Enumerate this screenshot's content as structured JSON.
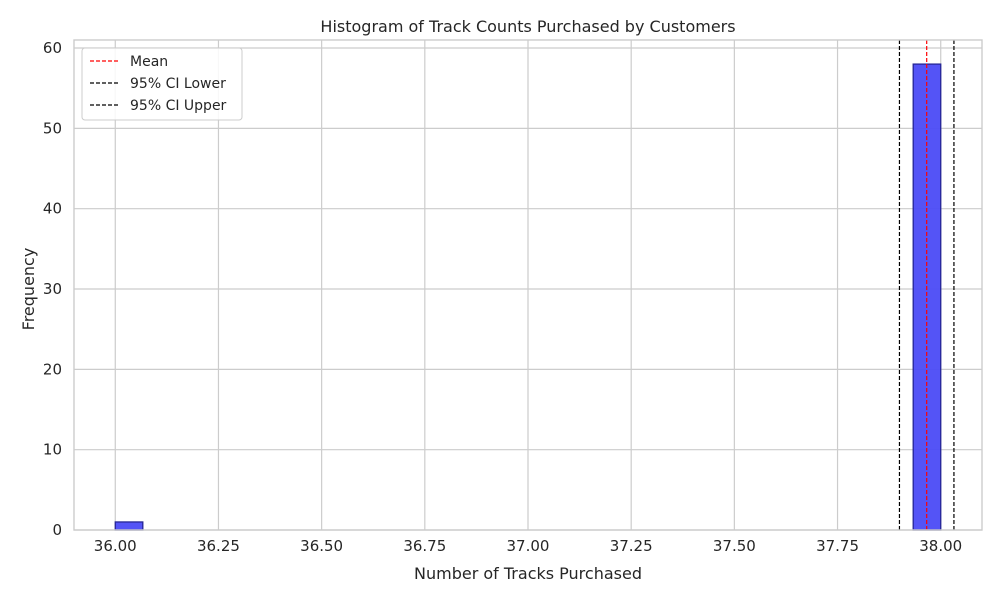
{
  "chart_data": {
    "type": "bar",
    "title": "Histogram of Track Counts Purchased by Customers",
    "xlabel": "Number of Tracks Purchased",
    "ylabel": "Frequency",
    "xlim": [
      35.9,
      38.1
    ],
    "ylim": [
      0,
      61
    ],
    "xticks": [
      "36.00",
      "36.25",
      "36.50",
      "36.75",
      "37.00",
      "37.25",
      "37.50",
      "37.75",
      "38.00"
    ],
    "yticks": [
      "0",
      "10",
      "20",
      "30",
      "40",
      "50",
      "60"
    ],
    "bins": [
      {
        "start": 36.0,
        "end": 36.0667,
        "count": 1
      },
      {
        "start": 37.9333,
        "end": 38.0,
        "count": 58
      }
    ],
    "reference_lines": [
      {
        "name": "Mean",
        "x": 37.966,
        "color": "#ff0000",
        "style": "dashed"
      },
      {
        "name": "95% CI Lower",
        "x": 37.9,
        "color": "#000000",
        "style": "dashed"
      },
      {
        "name": "95% CI Upper",
        "x": 38.032,
        "color": "#000000",
        "style": "dashed"
      }
    ],
    "bar_color": "#4b4bf5",
    "bar_edge_color": "#262696",
    "grid": true,
    "legend_position": "top-left"
  }
}
